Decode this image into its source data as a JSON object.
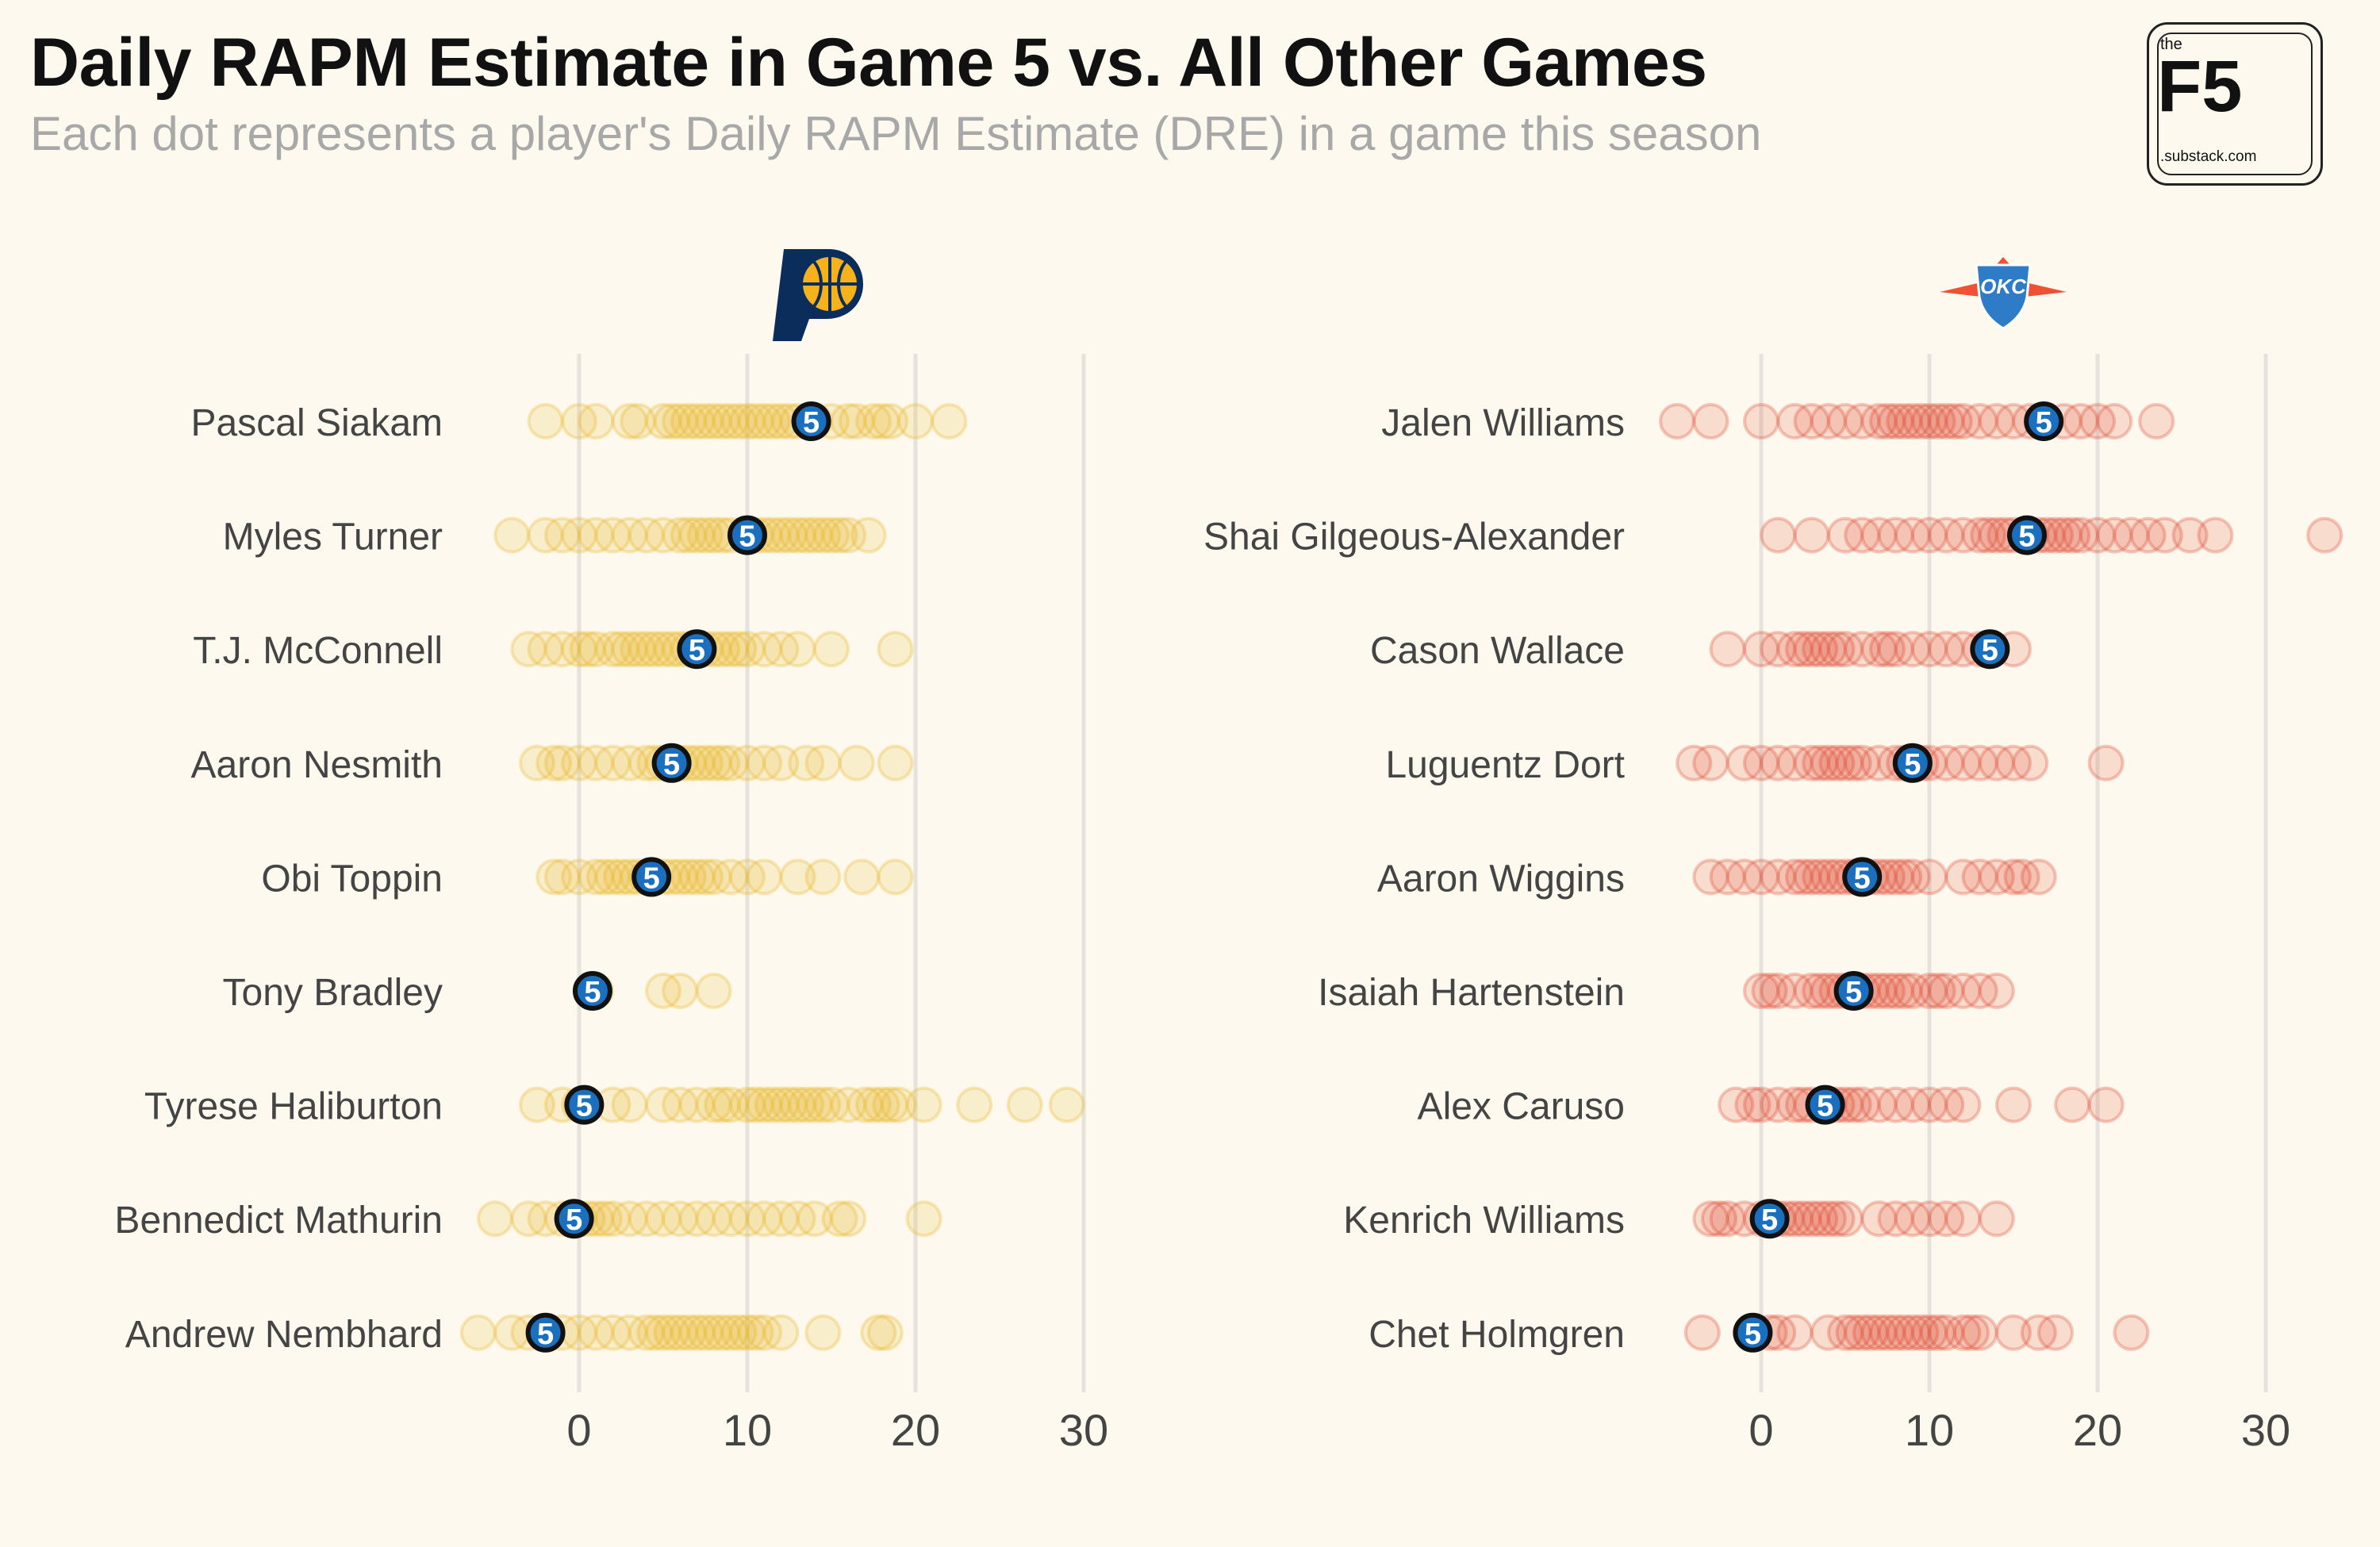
{
  "header": {
    "title": "Daily RAPM Estimate in Game 5 vs. All Other Games",
    "subtitle": "Each dot represents a player's Daily RAPM Estimate (DRE) in a game this season"
  },
  "logo": {
    "the": "the",
    "f5": "F5",
    "domain": ".substack.com"
  },
  "colors": {
    "background": "#fdf9ee",
    "pacers": "#e8b51c",
    "thunder": "#e0422a",
    "game5_fill": "#1a6fbf",
    "gridline": "#e6e3dc",
    "label_text": "#444444"
  },
  "team_icons": [
    "pacers-logo-icon",
    "thunder-logo-icon"
  ],
  "chart_data": [
    {
      "type": "scatter",
      "team_logo": "pacers-logo-icon",
      "marker_label": "5",
      "x_ticks": [
        0,
        10,
        20,
        30
      ],
      "xlim": [
        -7,
        31
      ],
      "grid": true,
      "players": [
        {
          "name": "Pascal Siakam",
          "game5": 13.8,
          "other": [
            -2,
            0,
            1,
            3,
            3.5,
            5,
            5.5,
            6,
            6.5,
            7,
            7.5,
            8,
            8.5,
            9,
            9.5,
            10,
            10.5,
            11,
            11.5,
            12,
            12.5,
            13,
            14,
            15,
            16,
            16.5,
            17.5,
            18,
            18.5,
            20,
            22
          ]
        },
        {
          "name": "Myles Turner",
          "game5": 10,
          "other": [
            -4,
            -2,
            -1,
            0,
            1,
            2,
            3,
            4,
            5,
            6,
            6.5,
            7,
            7.5,
            8,
            8.5,
            9,
            10.5,
            11,
            11.5,
            12,
            12.5,
            13,
            13.5,
            14,
            14.5,
            15,
            15.5,
            16,
            17.2
          ]
        },
        {
          "name": "T.J. McConnell",
          "game5": 7,
          "other": [
            -3,
            -2,
            -1,
            0,
            0.5,
            1,
            2,
            2.5,
            3,
            3.5,
            4,
            4.5,
            5,
            5.5,
            6,
            6.5,
            7.5,
            8,
            8.5,
            9,
            9.5,
            10,
            11,
            12,
            13,
            15,
            18.8
          ]
        },
        {
          "name": "Aaron Nesmith",
          "game5": 5.5,
          "other": [
            -2.5,
            -1.5,
            -1,
            0,
            1,
            2,
            3,
            4,
            4.5,
            5,
            6,
            6.5,
            7,
            7.5,
            8,
            8.5,
            9,
            10,
            11,
            12,
            13.5,
            14.5,
            16.5,
            18.8
          ]
        },
        {
          "name": "Obi Toppin",
          "game5": 4.3,
          "other": [
            -1.5,
            -1,
            0,
            1,
            1.5,
            2,
            2.5,
            3,
            3.5,
            4,
            5,
            5.5,
            6,
            6.5,
            7,
            7.5,
            8,
            9,
            10,
            11,
            13,
            14.5,
            16.8,
            18.8
          ]
        },
        {
          "name": "Tony Bradley",
          "game5": 0.8,
          "other": [
            1,
            5,
            6,
            8
          ]
        },
        {
          "name": "Tyrese Haliburton",
          "game5": 0.3,
          "other": [
            -2.5,
            -1,
            0,
            2,
            3,
            5,
            6,
            7,
            8,
            8.5,
            9,
            10,
            10.5,
            11,
            11.5,
            12,
            12.5,
            13,
            13.5,
            14,
            14.5,
            15,
            16,
            17,
            17.5,
            18,
            18.5,
            19,
            20.5,
            23.5,
            26.5,
            29
          ]
        },
        {
          "name": "Bennedict Mathurin",
          "game5": -0.3,
          "other": [
            -5,
            -3,
            -2,
            -1,
            0,
            0.5,
            1,
            1.5,
            2,
            3,
            4,
            5,
            6,
            7,
            8,
            9,
            10,
            11,
            12,
            13,
            14,
            15.5,
            16,
            20.5
          ]
        },
        {
          "name": "Andrew Nembhard",
          "game5": -2,
          "other": [
            -6,
            -4,
            -3,
            -1,
            0,
            1,
            2,
            3,
            4,
            4.5,
            5,
            5.5,
            6,
            6.5,
            7,
            7.5,
            8,
            8.5,
            9,
            9.5,
            10,
            10.5,
            11,
            12,
            14.5,
            17.8,
            18.2
          ]
        }
      ]
    },
    {
      "type": "scatter",
      "team_logo": "thunder-logo-icon",
      "marker_label": "5",
      "x_ticks": [
        0,
        10,
        20,
        30
      ],
      "xlim": [
        -7,
        31
      ],
      "grid": true,
      "players": [
        {
          "name": "Jalen Williams",
          "game5": 16.8,
          "other": [
            -5,
            -3,
            0,
            2,
            3,
            4,
            5,
            6,
            7,
            7.5,
            8,
            8.5,
            9,
            9.5,
            10,
            10.5,
            11,
            11.5,
            12,
            13,
            14,
            15,
            16,
            18,
            19,
            20,
            21,
            23.5
          ]
        },
        {
          "name": "Shai Gilgeous-Alexander",
          "game5": 15.8,
          "other": [
            1,
            3,
            5,
            6,
            7,
            8,
            9,
            10,
            11,
            12,
            13,
            13.5,
            14,
            14.5,
            15,
            16,
            16.5,
            17,
            17.5,
            18,
            18.5,
            19,
            20,
            21,
            22,
            23,
            24,
            25.5,
            27,
            33.5
          ]
        },
        {
          "name": "Cason Wallace",
          "game5": 13.6,
          "other": [
            -2,
            0,
            1,
            2,
            2.5,
            3,
            3.5,
            4,
            4.5,
            5,
            6,
            7,
            7.5,
            8,
            9,
            10,
            11,
            12,
            13,
            15
          ]
        },
        {
          "name": "Luguentz Dort",
          "game5": 9,
          "other": [
            -4,
            -3,
            -1,
            0,
            1,
            2,
            3,
            3.5,
            4,
            4.5,
            5,
            5.5,
            6,
            7,
            8,
            8.5,
            9.5,
            10,
            11,
            12,
            13,
            14,
            15,
            16,
            20.5
          ]
        },
        {
          "name": "Aaron Wiggins",
          "game5": 6,
          "other": [
            -3,
            -2,
            -1,
            0,
            1,
            2,
            2.5,
            3,
            3.5,
            4,
            4.5,
            5,
            5.5,
            6.5,
            7,
            7.5,
            8,
            8.5,
            9,
            10,
            12,
            13,
            14,
            15,
            15.5,
            16.5
          ]
        },
        {
          "name": "Isaiah Hartenstein",
          "game5": 5.5,
          "other": [
            0,
            0.5,
            1,
            2,
            3,
            3.5,
            4,
            4.5,
            5,
            6,
            6.5,
            7,
            7.5,
            8,
            8.5,
            9,
            10,
            10.5,
            11,
            12,
            13,
            14
          ]
        },
        {
          "name": "Alex Caruso",
          "game5": 3.8,
          "other": [
            -1.5,
            -0.5,
            0,
            1,
            2,
            2.5,
            3,
            4,
            4.5,
            5,
            5.5,
            6,
            7,
            8,
            9,
            10,
            11,
            12,
            15,
            18.5,
            20.5
          ]
        },
        {
          "name": "Kenrich Williams",
          "game5": 0.5,
          "other": [
            -3,
            -2.5,
            -2,
            -1,
            0,
            1,
            1.5,
            2,
            2.5,
            3,
            3.5,
            4,
            4.5,
            5,
            7,
            8,
            9,
            10,
            11,
            12,
            14
          ]
        },
        {
          "name": "Chet Holmgren",
          "game5": -0.5,
          "other": [
            -3.5,
            0.5,
            1,
            2,
            4,
            5,
            5.5,
            6,
            6.5,
            7,
            7.5,
            8,
            8.5,
            9,
            9.5,
            10,
            10.5,
            11,
            12,
            12.5,
            13,
            15,
            16.5,
            17.5,
            22
          ]
        }
      ]
    }
  ]
}
